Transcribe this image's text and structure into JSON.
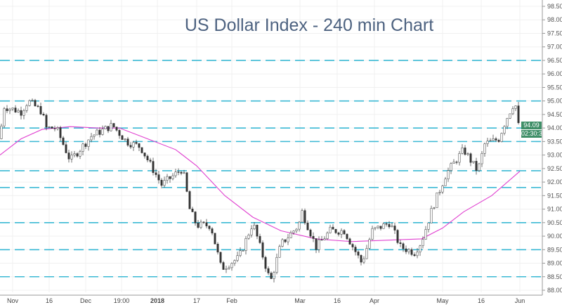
{
  "chart_data": {
    "type": "candlestick",
    "title": "US Dollar Index - 240 min Chart",
    "ylim": [
      88.0,
      98.5
    ],
    "yticks": [
      "98.50",
      "98.00",
      "97.50",
      "97.00",
      "96.50",
      "96.00",
      "95.50",
      "95.00",
      "94.50",
      "94.00",
      "93.50",
      "93.00",
      "92.50",
      "92.00",
      "91.50",
      "91.00",
      "90.50",
      "90.00",
      "89.50",
      "89.00",
      "88.50",
      "88.00"
    ],
    "x_range": [
      0,
      74
    ],
    "xticks": [
      {
        "label": "Nov",
        "at": 1.8
      },
      {
        "label": "16",
        "at": 7
      },
      {
        "label": "Dec",
        "at": 12.2
      },
      {
        "label": "19:00",
        "at": 17.3
      },
      {
        "label": "2018",
        "at": 22.4,
        "bold": true
      },
      {
        "label": "17",
        "at": 28
      },
      {
        "label": "Feb",
        "at": 33
      },
      {
        "label": "Mar",
        "at": 42.7
      },
      {
        "label": "16",
        "at": 48
      },
      {
        "label": "Apr",
        "at": 53.3
      },
      {
        "label": "May",
        "at": 63
      },
      {
        "label": "16",
        "at": 68.5
      },
      {
        "label": "Jun",
        "at": 74
      }
    ],
    "price_path": [
      [
        0,
        93.6
      ],
      [
        0.5,
        94.8
      ],
      [
        3,
        94.6
      ],
      [
        4,
        95.0
      ],
      [
        6,
        94.6
      ],
      [
        6.5,
        94.0
      ],
      [
        8,
        94.0
      ],
      [
        10,
        92.8
      ],
      [
        13,
        93.7
      ],
      [
        16,
        94.1
      ],
      [
        18,
        93.5
      ],
      [
        20,
        93.3
      ],
      [
        23,
        91.9
      ],
      [
        26,
        92.5
      ],
      [
        27,
        91.0
      ],
      [
        28,
        90.4
      ],
      [
        30,
        90.4
      ],
      [
        31.5,
        88.8
      ],
      [
        34,
        89.2
      ],
      [
        36,
        90.5
      ],
      [
        38.5,
        88.3
      ],
      [
        40,
        89.7
      ],
      [
        42.5,
        90.4
      ],
      [
        43,
        90.9
      ],
      [
        45,
        89.6
      ],
      [
        47,
        90.2
      ],
      [
        49,
        90.2
      ],
      [
        51.5,
        89.0
      ],
      [
        53,
        90.2
      ],
      [
        55.5,
        90.5
      ],
      [
        57,
        89.6
      ],
      [
        59,
        89.4
      ],
      [
        60,
        89.8
      ],
      [
        61.5,
        91.0
      ],
      [
        63.5,
        92.3
      ],
      [
        66,
        93.2
      ],
      [
        68,
        92.4
      ],
      [
        69,
        93.4
      ],
      [
        71,
        93.6
      ],
      [
        72,
        94.3
      ],
      [
        73.3,
        95.0
      ],
      [
        73.8,
        94.09
      ]
    ],
    "moving_average": {
      "color": "#e040d0",
      "points": [
        [
          0,
          93.0
        ],
        [
          3,
          93.6
        ],
        [
          6,
          93.95
        ],
        [
          10,
          94.05
        ],
        [
          14,
          94.0
        ],
        [
          17,
          94.0
        ],
        [
          21,
          93.6
        ],
        [
          25,
          93.2
        ],
        [
          28,
          92.6
        ],
        [
          32,
          91.5
        ],
        [
          36,
          90.7
        ],
        [
          40,
          90.2
        ],
        [
          45,
          89.9
        ],
        [
          50,
          89.8
        ],
        [
          55,
          89.85
        ],
        [
          60,
          89.9
        ],
        [
          63,
          90.3
        ],
        [
          66,
          90.9
        ],
        [
          70,
          91.5
        ],
        [
          74,
          92.4
        ]
      ]
    },
    "horizontal_levels": [
      96.5,
      95.0,
      94.0,
      93.5,
      92.42,
      91.8,
      90.5,
      89.5,
      88.5
    ],
    "level_color": "#3bb9d4",
    "up_color": "#2a2a2a",
    "down_color": "#2a2a2a",
    "last_price": "94.09",
    "countdown": "02:30:3",
    "label_color": "#3f8f68"
  }
}
